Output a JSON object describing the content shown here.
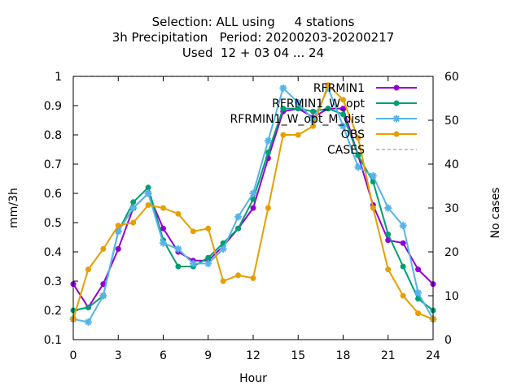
{
  "chart_data": {
    "type": "line",
    "title_lines": [
      "Selection: ALL using     4 stations",
      "3h Precipitation   Period: 20200203-20200217",
      "Used  12 + 03 04 ... 24"
    ],
    "xlabel": "Hour",
    "ylabel": "mm/3h",
    "y2label": "No cases",
    "xlim": [
      0,
      24
    ],
    "ylim": [
      0.1,
      1.0
    ],
    "y2lim": [
      0,
      60
    ],
    "xticks": [
      0,
      3,
      6,
      9,
      12,
      15,
      18,
      21,
      24
    ],
    "yticks": [
      0.1,
      0.2,
      0.3,
      0.4,
      0.5,
      0.6,
      0.7,
      0.8,
      0.9,
      1
    ],
    "y2ticks": [
      0,
      10,
      20,
      30,
      40,
      50,
      60
    ],
    "grid": false,
    "legend_position": "top-right",
    "x": [
      0,
      1,
      2,
      3,
      4,
      5,
      6,
      7,
      8,
      9,
      10,
      11,
      12,
      13,
      14,
      15,
      16,
      17,
      18,
      19,
      20,
      21,
      22,
      23,
      24
    ],
    "series": [
      {
        "name": "RFRMIN1",
        "color": "#9400d3",
        "marker": "circle",
        "axis": "y",
        "values": [
          0.29,
          0.21,
          0.29,
          0.41,
          0.55,
          0.6,
          0.48,
          0.4,
          0.37,
          0.37,
          0.42,
          0.48,
          0.55,
          0.72,
          0.88,
          0.89,
          0.86,
          0.89,
          0.89,
          0.73,
          0.56,
          0.44,
          0.43,
          0.34,
          0.29
        ]
      },
      {
        "name": "RFRMIN1_W_opt",
        "color": "#009e73",
        "marker": "circle",
        "axis": "y",
        "values": [
          0.2,
          0.21,
          0.25,
          0.47,
          0.57,
          0.62,
          0.44,
          0.35,
          0.35,
          0.38,
          0.43,
          0.48,
          0.58,
          0.74,
          0.89,
          0.89,
          0.88,
          0.89,
          0.87,
          0.73,
          0.64,
          0.46,
          0.35,
          0.24,
          0.2
        ]
      },
      {
        "name": "RFRMIN1_W_opt_M_dist",
        "color": "#56b4e9",
        "marker": "star",
        "axis": "y",
        "values": [
          0.17,
          0.16,
          0.25,
          0.47,
          0.55,
          0.6,
          0.43,
          0.41,
          0.36,
          0.36,
          0.41,
          0.52,
          0.6,
          0.78,
          0.96,
          0.91,
          0.85,
          0.96,
          0.83,
          0.69,
          0.66,
          0.55,
          0.49,
          0.26,
          0.17
        ]
      },
      {
        "name": "OBS",
        "color": "#e69f00",
        "marker": "circle",
        "axis": "y",
        "values": [
          0.17,
          0.34,
          0.41,
          0.49,
          0.5,
          0.56,
          0.55,
          0.53,
          0.47,
          0.48,
          0.3,
          0.32,
          0.31,
          0.55,
          0.8,
          0.8,
          0.83,
          0.97,
          0.92,
          0.79,
          0.55,
          0.34,
          0.25,
          0.19,
          0.17
        ]
      },
      {
        "name": "CASES",
        "color": "#a0a0a0",
        "marker": "none",
        "dash": true,
        "axis": "y2",
        "values": [
          60,
          60,
          60,
          60,
          60,
          60,
          60,
          60,
          60,
          60,
          60,
          60,
          60,
          60,
          60,
          60,
          60,
          60,
          60,
          60,
          60,
          60,
          60,
          60,
          60
        ]
      }
    ]
  }
}
